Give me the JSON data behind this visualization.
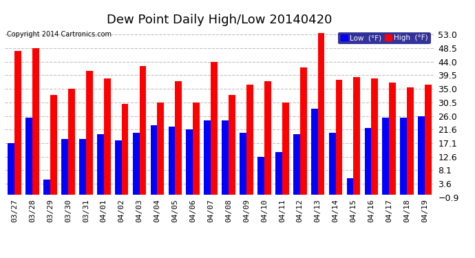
{
  "title": "Dew Point Daily High/Low 20140420",
  "copyright": "Copyright 2014 Cartronics.com",
  "categories": [
    "03/27",
    "03/28",
    "03/29",
    "03/30",
    "03/31",
    "04/01",
    "04/02",
    "04/03",
    "04/04",
    "04/05",
    "04/06",
    "04/07",
    "04/08",
    "04/09",
    "04/10",
    "04/11",
    "04/12",
    "04/13",
    "04/14",
    "04/15",
    "04/16",
    "04/17",
    "04/18",
    "04/19"
  ],
  "low_values": [
    17.1,
    25.5,
    5.0,
    18.5,
    18.5,
    20.0,
    18.0,
    20.5,
    23.0,
    22.5,
    21.5,
    24.5,
    24.5,
    20.5,
    12.5,
    14.0,
    20.0,
    28.5,
    20.5,
    5.5,
    22.0,
    25.5,
    25.5,
    26.0
  ],
  "high_values": [
    47.5,
    48.5,
    33.0,
    35.0,
    41.0,
    38.5,
    30.0,
    42.5,
    30.5,
    37.5,
    30.5,
    44.0,
    33.0,
    36.5,
    37.5,
    30.5,
    42.0,
    53.5,
    38.0,
    39.0,
    38.5,
    37.0,
    35.5,
    36.5
  ],
  "low_color": "#0000FF",
  "high_color": "#FF0000",
  "bg_color": "#FFFFFF",
  "plot_bg_color": "#FFFFFF",
  "grid_color": "#C0C0C0",
  "yticks": [
    -0.9,
    3.6,
    8.1,
    12.6,
    17.1,
    21.6,
    26.0,
    30.5,
    35.0,
    39.5,
    44.0,
    48.5,
    53.0
  ],
  "ylim": [
    -0.9,
    55.0
  ],
  "title_fontsize": 13,
  "axis_fontsize": 8,
  "tick_fontsize": 9,
  "legend_label_low": "Low  (°F)",
  "legend_label_high": "High  (°F)",
  "bar_width": 0.38
}
